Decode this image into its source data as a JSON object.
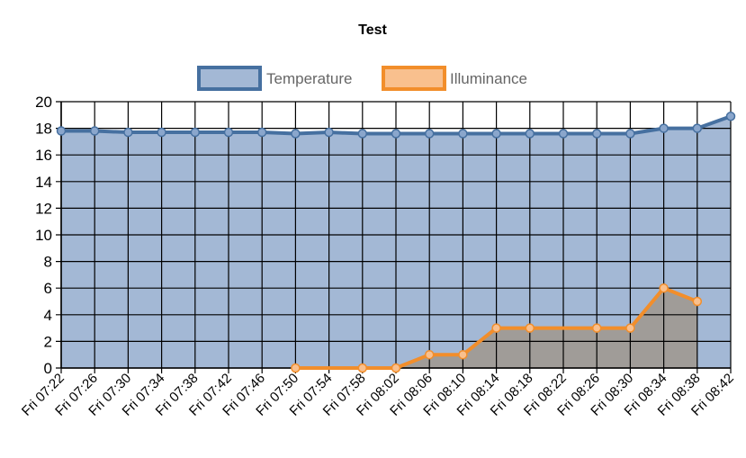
{
  "chart_data": {
    "type": "area",
    "title": "Test",
    "x": [
      "Fri 07:22",
      "Fri 07:26",
      "Fri 07:30",
      "Fri 07:34",
      "Fri 07:38",
      "Fri 07:42",
      "Fri 07:46",
      "Fri 07:50",
      "Fri 07:54",
      "Fri 07:58",
      "Fri 08:02",
      "Fri 08:06",
      "Fri 08:10",
      "Fri 08:14",
      "Fri 08:18",
      "Fri 08:22",
      "Fri 08:26",
      "Fri 08:30",
      "Fri 08:34",
      "Fri 08:38",
      "Fri 08:42"
    ],
    "ylim": [
      0,
      20
    ],
    "yticks": [
      0,
      2,
      4,
      6,
      8,
      10,
      12,
      14,
      16,
      18,
      20
    ],
    "grid": true,
    "legend": "top-center",
    "series": [
      {
        "name": "Temperature",
        "color": "#4670a0",
        "fill": "#a3b8d5",
        "points": [
          [
            "Fri 07:22",
            17.8
          ],
          [
            "Fri 07:26",
            17.8
          ],
          [
            "Fri 07:30",
            17.7
          ],
          [
            "Fri 07:34",
            17.7
          ],
          [
            "Fri 07:38",
            17.7
          ],
          [
            "Fri 07:42",
            17.7
          ],
          [
            "Fri 07:46",
            17.7
          ],
          [
            "Fri 07:50",
            17.6
          ],
          [
            "Fri 07:54",
            17.7
          ],
          [
            "Fri 07:58",
            17.6
          ],
          [
            "Fri 08:02",
            17.6
          ],
          [
            "Fri 08:06",
            17.6
          ],
          [
            "Fri 08:10",
            17.6
          ],
          [
            "Fri 08:14",
            17.6
          ],
          [
            "Fri 08:18",
            17.6
          ],
          [
            "Fri 08:22",
            17.6
          ],
          [
            "Fri 08:26",
            17.6
          ],
          [
            "Fri 08:30",
            17.6
          ],
          [
            "Fri 08:34",
            18.0
          ],
          [
            "Fri 08:38",
            18.0
          ],
          [
            "Fri 08:42",
            18.9
          ]
        ]
      },
      {
        "name": "Illuminance",
        "color": "#f28e2b",
        "fill": "#a09c98",
        "legend_fill": "#f9c08e",
        "points": [
          [
            "Fri 07:50",
            0
          ],
          [
            "Fri 07:58",
            0
          ],
          [
            "Fri 08:02",
            0
          ],
          [
            "Fri 08:06",
            1
          ],
          [
            "Fri 08:10",
            1
          ],
          [
            "Fri 08:14",
            3
          ],
          [
            "Fri 08:18",
            3
          ],
          [
            "Fri 08:26",
            3
          ],
          [
            "Fri 08:30",
            3
          ],
          [
            "Fri 08:34",
            6
          ],
          [
            "Fri 08:38",
            5
          ]
        ]
      }
    ]
  }
}
